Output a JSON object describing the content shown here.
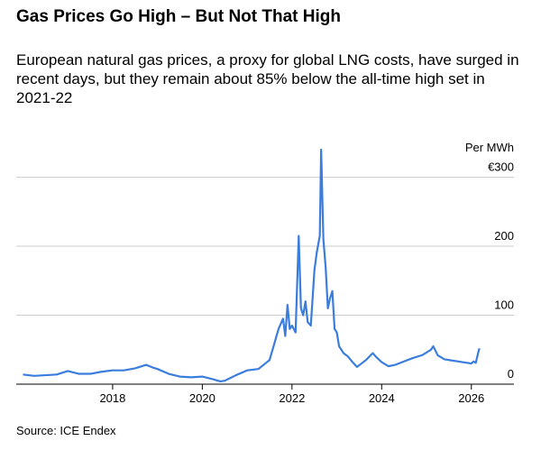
{
  "chart_data": {
    "type": "line",
    "title": "Gas Prices Go High – But Not That High",
    "subtitle": "European natural gas prices, a proxy for global LNG costs, have surged in recent days, but they remain about 85% below the all-time high set in 2021-22",
    "y_label": "Per MWh",
    "source": "Source: ICE Endex",
    "x": [
      2016.0,
      2016.25,
      2016.5,
      2016.75,
      2017.0,
      2017.25,
      2017.5,
      2017.75,
      2018.0,
      2018.25,
      2018.5,
      2018.75,
      2018.9,
      2019.0,
      2019.25,
      2019.5,
      2019.75,
      2020.0,
      2020.25,
      2020.4,
      2020.5,
      2020.75,
      2021.0,
      2021.25,
      2021.5,
      2021.7,
      2021.8,
      2021.85,
      2021.9,
      2021.95,
      2022.0,
      2022.08,
      2022.15,
      2022.2,
      2022.25,
      2022.3,
      2022.35,
      2022.42,
      2022.5,
      2022.55,
      2022.62,
      2022.65,
      2022.7,
      2022.75,
      2022.8,
      2022.85,
      2022.9,
      2022.95,
      2023.0,
      2023.05,
      2023.15,
      2023.25,
      2023.35,
      2023.45,
      2023.55,
      2023.65,
      2023.8,
      2023.9,
      2024.0,
      2024.15,
      2024.3,
      2024.5,
      2024.7,
      2024.9,
      2025.1,
      2025.15,
      2025.25,
      2025.4,
      2025.6,
      2025.8,
      2026.0,
      2026.05,
      2026.1,
      2026.15,
      2026.18
    ],
    "series": [
      {
        "name": "European natural gas price",
        "color": "#3b7ddd",
        "values": [
          14,
          12,
          13,
          14,
          19,
          15,
          15,
          18,
          20,
          20,
          23,
          28,
          24,
          22,
          15,
          11,
          10,
          11,
          7,
          4,
          5,
          13,
          20,
          22,
          35,
          80,
          95,
          70,
          115,
          80,
          85,
          75,
          215,
          110,
          100,
          120,
          90,
          85,
          165,
          190,
          215,
          340,
          210,
          170,
          110,
          125,
          135,
          80,
          75,
          55,
          45,
          40,
          32,
          25,
          30,
          35,
          45,
          38,
          32,
          26,
          28,
          33,
          38,
          42,
          50,
          55,
          42,
          36,
          34,
          32,
          30,
          33,
          31,
          45,
          52
        ]
      }
    ],
    "xlim": [
      2015.85,
      2026.95
    ],
    "xticks": [
      2018,
      2020,
      2022,
      2024,
      2026
    ],
    "ylim": [
      0,
      340
    ],
    "yticks": [
      0,
      100,
      200,
      {
        "value": 300,
        "label": "€300"
      }
    ],
    "grid": true
  }
}
